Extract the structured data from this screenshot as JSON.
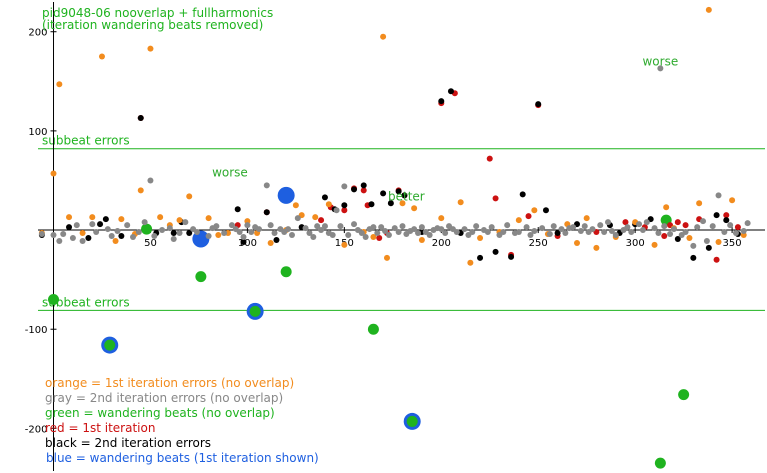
{
  "chart_data": {
    "type": "scatter",
    "title": "pid9048-06 nooverlap + fullharmonics",
    "subtitle": "(iteration wandering beats removed)",
    "xlabel": "",
    "ylabel": "",
    "xlim": [
      -8,
      368
    ],
    "ylim": [
      -245,
      232
    ],
    "x_ticks": [
      50,
      100,
      150,
      200,
      250,
      300,
      350
    ],
    "y_ticks": [
      -200,
      -100,
      100,
      200
    ],
    "grid": false,
    "reference_lines": [
      {
        "y": 82,
        "label": "subbeat errors",
        "color": "#1fb31f"
      },
      {
        "y": -81,
        "label": "subbeat errors",
        "color": "#1fb31f"
      }
    ],
    "annotations": [
      {
        "text": "worse",
        "x": 91,
        "y": 52,
        "color": "#2eaa2e"
      },
      {
        "text": "better",
        "x": 182,
        "y": 28,
        "color": "#2eaa2e"
      },
      {
        "text": "worse",
        "x": 313,
        "y": 164,
        "color": "#2eaa2e"
      }
    ],
    "legend": [
      {
        "text": "orange = 1st iteration errors (no overlap)",
        "color": "#f28c1e"
      },
      {
        "text": "gray = 2nd iteration errors (no overlap)",
        "color": "#888888"
      },
      {
        "text": "green = wandering beats (no overlap)",
        "color": "#1fb31f"
      },
      {
        "text": "red = 1st iteration",
        "color": "#cc1111"
      },
      {
        "text": "black = 2nd iteration errors",
        "color": "#000000"
      },
      {
        "text": "blue = wandering beats (1st iteration shown)",
        "color": "#1e5fe0"
      }
    ],
    "series": [
      {
        "color": "#1e5fe0",
        "values": [
          [
            29,
            -116
          ],
          [
            76,
            -9
          ],
          [
            104,
            -82
          ],
          [
            120,
            35
          ],
          [
            185,
            -193
          ]
        ]
      },
      {
        "color": "#1fb31f",
        "values": [
          [
            0,
            -70
          ],
          [
            29,
            -116
          ],
          [
            48,
            1
          ],
          [
            76,
            -47
          ],
          [
            104,
            -82
          ],
          [
            120,
            -42
          ],
          [
            165,
            -100
          ],
          [
            185,
            -193
          ],
          [
            313,
            -235
          ],
          [
            316,
            10
          ],
          [
            325,
            -166
          ]
        ]
      },
      {
        "color": "#cc1111",
        "values": [
          [
            45,
            113
          ],
          [
            95,
            5
          ],
          [
            110,
            18
          ],
          [
            138,
            10
          ],
          [
            143,
            23
          ],
          [
            150,
            20
          ],
          [
            155,
            42
          ],
          [
            160,
            40
          ],
          [
            162,
            25
          ],
          [
            168,
            -8
          ],
          [
            172,
            -3
          ],
          [
            178,
            40
          ],
          [
            181,
            35
          ],
          [
            200,
            128
          ],
          [
            207,
            138
          ],
          [
            225,
            72
          ],
          [
            228,
            32
          ],
          [
            236,
            -25
          ],
          [
            245,
            14
          ],
          [
            250,
            126
          ],
          [
            260,
            -6
          ],
          [
            280,
            -2
          ],
          [
            295,
            8
          ],
          [
            305,
            3
          ],
          [
            315,
            -6
          ],
          [
            318,
            5
          ],
          [
            322,
            8
          ],
          [
            326,
            5
          ],
          [
            333,
            11
          ],
          [
            342,
            -30
          ],
          [
            347,
            15
          ],
          [
            353,
            3
          ]
        ]
      },
      {
        "color": "#000000",
        "values": [
          [
            -6,
            -5
          ],
          [
            8,
            3
          ],
          [
            18,
            -8
          ],
          [
            24,
            6
          ],
          [
            27,
            11
          ],
          [
            35,
            -6
          ],
          [
            45,
            113
          ],
          [
            53,
            -3
          ],
          [
            62,
            -3
          ],
          [
            66,
            8
          ],
          [
            70,
            -3
          ],
          [
            95,
            21
          ],
          [
            98,
            -12
          ],
          [
            110,
            18
          ],
          [
            115,
            -10
          ],
          [
            128,
            3
          ],
          [
            140,
            33
          ],
          [
            145,
            21
          ],
          [
            150,
            25
          ],
          [
            155,
            41
          ],
          [
            160,
            45
          ],
          [
            164,
            26
          ],
          [
            170,
            37
          ],
          [
            174,
            27
          ],
          [
            178,
            39
          ],
          [
            181,
            35
          ],
          [
            190,
            -2
          ],
          [
            200,
            130
          ],
          [
            205,
            140
          ],
          [
            210,
            -3
          ],
          [
            220,
            -28
          ],
          [
            228,
            -22
          ],
          [
            236,
            -27
          ],
          [
            242,
            36
          ],
          [
            250,
            127
          ],
          [
            254,
            20
          ],
          [
            260,
            -3
          ],
          [
            270,
            6
          ],
          [
            287,
            5
          ],
          [
            292,
            -3
          ],
          [
            300,
            6
          ],
          [
            308,
            11
          ],
          [
            322,
            -9
          ],
          [
            330,
            -28
          ],
          [
            338,
            -18
          ],
          [
            342,
            15
          ],
          [
            347,
            10
          ],
          [
            353,
            -4
          ]
        ]
      },
      {
        "color": "#f28c1e",
        "values": [
          [
            -6,
            -3
          ],
          [
            0,
            57
          ],
          [
            3,
            147
          ],
          [
            8,
            13
          ],
          [
            15,
            -3
          ],
          [
            20,
            13
          ],
          [
            25,
            175
          ],
          [
            32,
            -11
          ],
          [
            35,
            11
          ],
          [
            42,
            -4
          ],
          [
            45,
            40
          ],
          [
            50,
            183
          ],
          [
            55,
            13
          ],
          [
            60,
            5
          ],
          [
            65,
            10
          ],
          [
            70,
            34
          ],
          [
            80,
            12
          ],
          [
            85,
            -5
          ],
          [
            90,
            -3
          ],
          [
            100,
            9
          ],
          [
            105,
            -3
          ],
          [
            112,
            -13
          ],
          [
            120,
            0
          ],
          [
            125,
            25
          ],
          [
            128,
            15
          ],
          [
            135,
            13
          ],
          [
            142,
            26
          ],
          [
            150,
            -15
          ],
          [
            160,
            -2
          ],
          [
            165,
            -7
          ],
          [
            170,
            195
          ],
          [
            172,
            -28
          ],
          [
            180,
            27
          ],
          [
            186,
            22
          ],
          [
            190,
            -10
          ],
          [
            200,
            12
          ],
          [
            210,
            28
          ],
          [
            215,
            -33
          ],
          [
            220,
            -8
          ],
          [
            230,
            -2
          ],
          [
            240,
            10
          ],
          [
            248,
            20
          ],
          [
            255,
            -4
          ],
          [
            265,
            6
          ],
          [
            270,
            -13
          ],
          [
            275,
            12
          ],
          [
            280,
            -18
          ],
          [
            290,
            -7
          ],
          [
            300,
            8
          ],
          [
            310,
            -15
          ],
          [
            316,
            23
          ],
          [
            320,
            2
          ],
          [
            328,
            -8
          ],
          [
            333,
            27
          ],
          [
            338,
            222
          ],
          [
            343,
            -12
          ],
          [
            350,
            30
          ],
          [
            356,
            -5
          ]
        ]
      },
      {
        "color": "#888888",
        "values": [
          [
            -6,
            -4
          ],
          [
            0,
            -5
          ],
          [
            3,
            -11
          ],
          [
            5,
            -4
          ],
          [
            10,
            -8
          ],
          [
            12,
            5
          ],
          [
            15,
            -11
          ],
          [
            20,
            6
          ],
          [
            22,
            -2
          ],
          [
            28,
            1
          ],
          [
            30,
            -6
          ],
          [
            33,
            -1
          ],
          [
            38,
            5
          ],
          [
            41,
            -7
          ],
          [
            44,
            -2
          ],
          [
            47,
            8
          ],
          [
            50,
            50
          ],
          [
            52,
            -6
          ],
          [
            56,
            0
          ],
          [
            60,
            2
          ],
          [
            62,
            -9
          ],
          [
            65,
            -3
          ],
          [
            68,
            8
          ],
          [
            72,
            1
          ],
          [
            74,
            -2
          ],
          [
            80,
            -6
          ],
          [
            82,
            2
          ],
          [
            84,
            4
          ],
          [
            88,
            -3
          ],
          [
            92,
            5
          ],
          [
            94,
            1
          ],
          [
            96,
            -2
          ],
          [
            98,
            -7
          ],
          [
            100,
            5
          ],
          [
            102,
            -2
          ],
          [
            104,
            3
          ],
          [
            106,
            1
          ],
          [
            110,
            45
          ],
          [
            112,
            5
          ],
          [
            114,
            -3
          ],
          [
            117,
            1
          ],
          [
            119,
            -2
          ],
          [
            121,
            1
          ],
          [
            123,
            -5
          ],
          [
            126,
            12
          ],
          [
            130,
            2
          ],
          [
            132,
            -3
          ],
          [
            134,
            -7
          ],
          [
            136,
            4
          ],
          [
            138,
            0
          ],
          [
            140,
            4
          ],
          [
            142,
            -3
          ],
          [
            144,
            -5
          ],
          [
            146,
            20
          ],
          [
            148,
            4
          ],
          [
            150,
            44
          ],
          [
            152,
            -5
          ],
          [
            155,
            6
          ],
          [
            157,
            0
          ],
          [
            159,
            -3
          ],
          [
            161,
            -7
          ],
          [
            163,
            1
          ],
          [
            165,
            3
          ],
          [
            167,
            -3
          ],
          [
            169,
            3
          ],
          [
            171,
            -1
          ],
          [
            173,
            -5
          ],
          [
            176,
            2
          ],
          [
            178,
            -2
          ],
          [
            180,
            4
          ],
          [
            182,
            -4
          ],
          [
            184,
            -1
          ],
          [
            186,
            1
          ],
          [
            188,
            -3
          ],
          [
            190,
            3
          ],
          [
            192,
            -2
          ],
          [
            194,
            -5
          ],
          [
            196,
            0
          ],
          [
            198,
            2
          ],
          [
            200,
            1
          ],
          [
            202,
            -3
          ],
          [
            204,
            4
          ],
          [
            206,
            1
          ],
          [
            208,
            -2
          ],
          [
            212,
            1
          ],
          [
            214,
            -5
          ],
          [
            216,
            -2
          ],
          [
            218,
            4
          ],
          [
            222,
            0
          ],
          [
            224,
            -2
          ],
          [
            226,
            3
          ],
          [
            230,
            -5
          ],
          [
            232,
            -2
          ],
          [
            234,
            5
          ],
          [
            238,
            -3
          ],
          [
            240,
            -2
          ],
          [
            244,
            3
          ],
          [
            246,
            -5
          ],
          [
            248,
            -1
          ],
          [
            252,
            2
          ],
          [
            256,
            -4
          ],
          [
            258,
            4
          ],
          [
            262,
            1
          ],
          [
            264,
            -3
          ],
          [
            266,
            2
          ],
          [
            268,
            3
          ],
          [
            272,
            -1
          ],
          [
            274,
            4
          ],
          [
            276,
            -2
          ],
          [
            278,
            1
          ],
          [
            282,
            5
          ],
          [
            284,
            -2
          ],
          [
            286,
            8
          ],
          [
            288,
            -1
          ],
          [
            290,
            -5
          ],
          [
            294,
            0
          ],
          [
            296,
            3
          ],
          [
            298,
            -2
          ],
          [
            302,
            6
          ],
          [
            304,
            0
          ],
          [
            306,
            8
          ],
          [
            310,
            2
          ],
          [
            312,
            -3
          ],
          [
            313,
            163
          ],
          [
            315,
            4
          ],
          [
            318,
            -4
          ],
          [
            320,
            1
          ],
          [
            324,
            -5
          ],
          [
            326,
            -2
          ],
          [
            330,
            -16
          ],
          [
            332,
            3
          ],
          [
            335,
            9
          ],
          [
            337,
            -11
          ],
          [
            340,
            4
          ],
          [
            343,
            35
          ],
          [
            346,
            -2
          ],
          [
            349,
            5
          ],
          [
            352,
            -3
          ],
          [
            356,
            -1
          ],
          [
            358,
            7
          ]
        ]
      }
    ]
  }
}
